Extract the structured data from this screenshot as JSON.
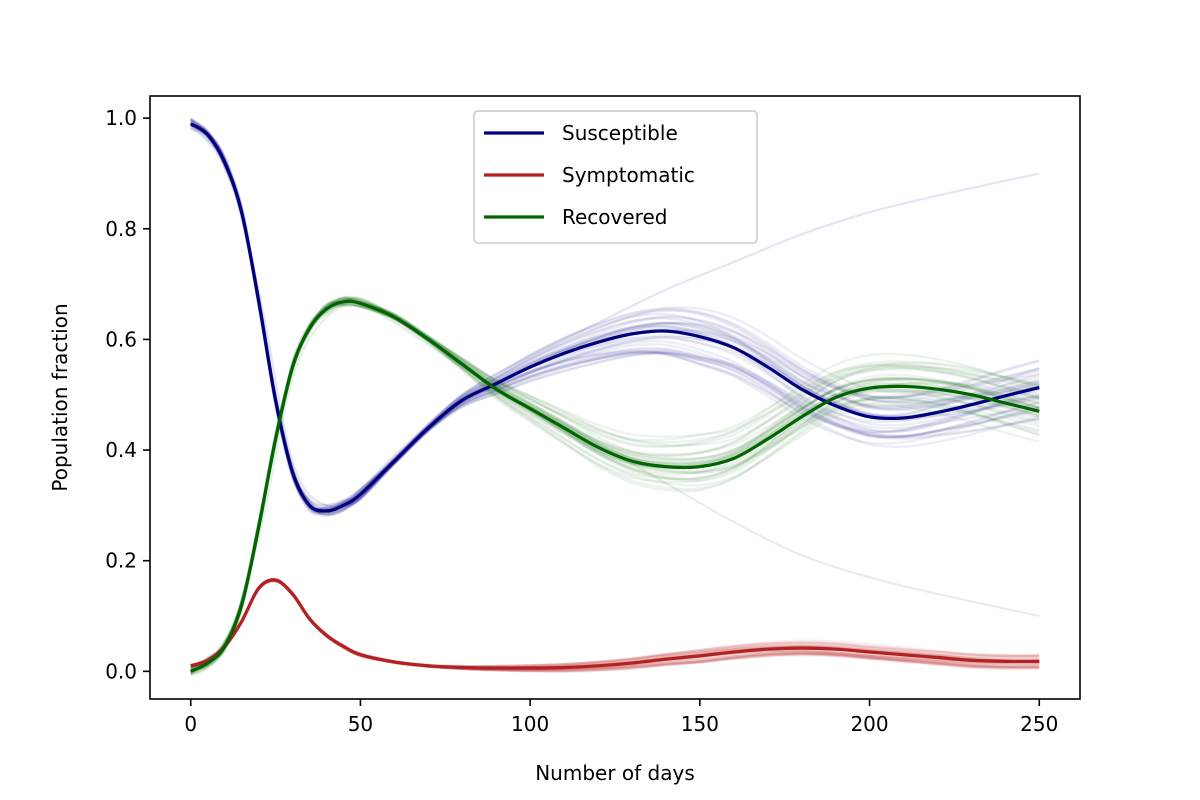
{
  "chart_data": {
    "type": "line",
    "title": "",
    "xlabel": "Number of days",
    "ylabel": "Population fraction",
    "xlim": [
      -12,
      262
    ],
    "ylim": [
      -0.05,
      1.04
    ],
    "xticks": [
      0,
      50,
      100,
      150,
      200,
      250
    ],
    "xtick_labels": [
      "0",
      "50",
      "100",
      "150",
      "200",
      "250"
    ],
    "yticks": [
      0.0,
      0.2,
      0.4,
      0.6,
      0.8,
      1.0
    ],
    "ytick_labels": [
      "0.0",
      "0.2",
      "0.4",
      "0.6",
      "0.8",
      "1.0"
    ],
    "grid": false,
    "legend_position": "top-center",
    "x": [
      0,
      5,
      10,
      15,
      20,
      25,
      30,
      35,
      40,
      45,
      50,
      60,
      70,
      80,
      90,
      100,
      110,
      120,
      130,
      140,
      150,
      160,
      170,
      180,
      190,
      200,
      210,
      220,
      230,
      240,
      250
    ],
    "series": [
      {
        "name": "Susceptible",
        "color": "#00007f",
        "values": [
          0.99,
          0.97,
          0.92,
          0.83,
          0.67,
          0.49,
          0.36,
          0.3,
          0.29,
          0.3,
          0.32,
          0.38,
          0.44,
          0.49,
          0.52,
          0.55,
          0.575,
          0.595,
          0.61,
          0.615,
          0.605,
          0.585,
          0.55,
          0.51,
          0.48,
          0.46,
          0.458,
          0.468,
          0.482,
          0.498,
          0.513
        ]
      },
      {
        "name": "Symptomatic",
        "color": "#b22222",
        "values": [
          0.01,
          0.02,
          0.045,
          0.09,
          0.15,
          0.165,
          0.14,
          0.095,
          0.065,
          0.045,
          0.03,
          0.017,
          0.01,
          0.007,
          0.006,
          0.006,
          0.007,
          0.01,
          0.015,
          0.022,
          0.028,
          0.035,
          0.04,
          0.042,
          0.04,
          0.035,
          0.03,
          0.025,
          0.02,
          0.018,
          0.018
        ]
      },
      {
        "name": "Recovered",
        "color": "#006400",
        "values": [
          0.0,
          0.015,
          0.045,
          0.12,
          0.26,
          0.42,
          0.55,
          0.62,
          0.655,
          0.668,
          0.665,
          0.64,
          0.6,
          0.555,
          0.51,
          0.475,
          0.44,
          0.405,
          0.38,
          0.37,
          0.37,
          0.385,
          0.42,
          0.46,
          0.495,
          0.512,
          0.515,
          0.51,
          0.5,
          0.485,
          0.47
        ]
      }
    ],
    "outlier_traces": [
      {
        "series": "Susceptible",
        "x": [
          0,
          10,
          20,
          30,
          40,
          50,
          60,
          80,
          100,
          120,
          140,
          160,
          180,
          200,
          220,
          250
        ],
        "values": [
          0.99,
          0.93,
          0.69,
          0.38,
          0.3,
          0.33,
          0.39,
          0.5,
          0.57,
          0.63,
          0.69,
          0.74,
          0.79,
          0.83,
          0.86,
          0.9
        ]
      },
      {
        "series": "Recovered",
        "x": [
          0,
          10,
          20,
          30,
          40,
          50,
          60,
          80,
          100,
          120,
          140,
          160,
          180,
          200,
          220,
          250
        ],
        "values": [
          0.0,
          0.04,
          0.24,
          0.53,
          0.64,
          0.66,
          0.63,
          0.55,
          0.48,
          0.41,
          0.34,
          0.27,
          0.21,
          0.17,
          0.14,
          0.1
        ]
      }
    ]
  }
}
